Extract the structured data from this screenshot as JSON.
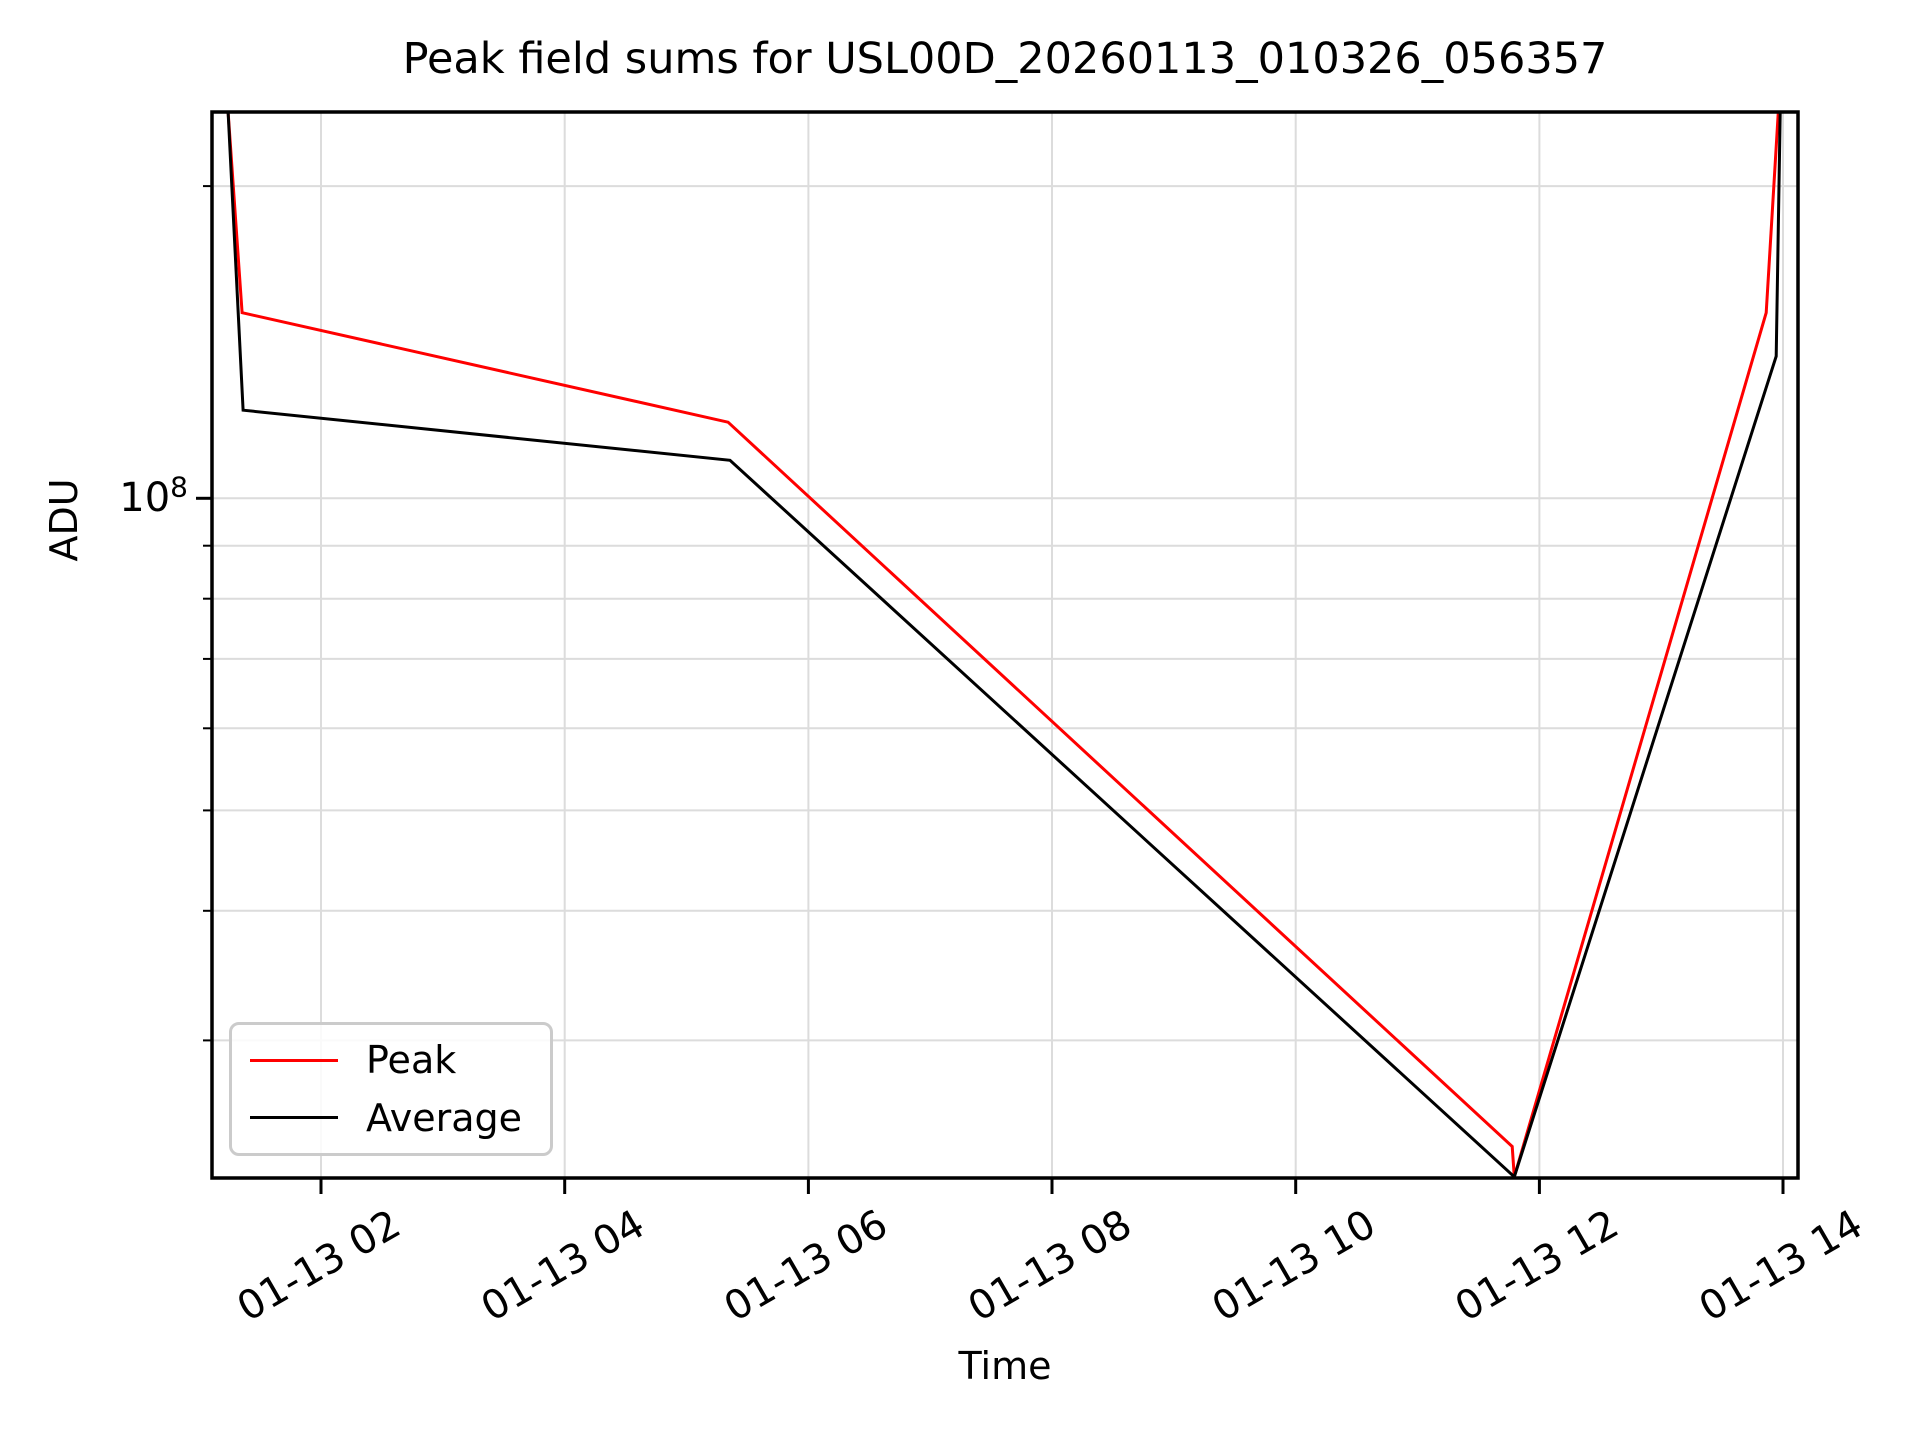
{
  "title": "Peak field sums for USL00D_20260113_010326_056357",
  "chart_data": {
    "type": "line",
    "title": "Peak field sums for USL00D_20260113_010326_056357",
    "xlabel": "Time",
    "ylabel": "ADU",
    "y_scale": "log",
    "grid": "both",
    "x_axis": {
      "range_hours": [
        1.105,
        14.123
      ],
      "day": "01-13",
      "ticks": [
        {
          "hour": 2,
          "label": "01-13 02"
        },
        {
          "hour": 4,
          "label": "01-13 04"
        },
        {
          "hour": 6,
          "label": "01-13 06"
        },
        {
          "hour": 8,
          "label": "01-13 08"
        },
        {
          "hour": 10,
          "label": "01-13 10"
        },
        {
          "hour": 12,
          "label": "01-13 12"
        },
        {
          "hour": 14,
          "label": "01-13 14"
        }
      ],
      "tick_rotation_deg": 30
    },
    "y_axis": {
      "range": [
        22100000,
        235800000
      ],
      "major_tick": {
        "value": 100000000,
        "label_base": "10",
        "label_exp": "8"
      },
      "minor_tick_values": [
        200000000,
        90000000,
        80000000,
        70000000,
        60000000,
        50000000,
        40000000,
        30000000
      ]
    },
    "legend": {
      "position": "lower left",
      "entries": [
        "Peak",
        "Average"
      ]
    },
    "series": [
      {
        "name": "Peak",
        "color": "#ff0000",
        "points": [
          {
            "time": "01-13 01:14",
            "hour": 1.237,
            "adu": 235800000,
            "clipped_at_top": true
          },
          {
            "time": "01-13 01:21",
            "hour": 1.352,
            "adu": 151000000
          },
          {
            "time": "01-13 05:20",
            "hour": 5.341,
            "adu": 118400000
          },
          {
            "time": "01-13 11:47",
            "hour": 11.777,
            "adu": 23700000
          },
          {
            "time": "01-13 11:48",
            "hour": 11.794,
            "adu": 22160000
          },
          {
            "time": "01-13 13:52",
            "hour": 13.862,
            "adu": 151000000
          },
          {
            "time": "01-13 13:58",
            "hour": 13.961,
            "adu": 235800000,
            "clipped_at_top": true
          }
        ]
      },
      {
        "name": "Average",
        "color": "#000000",
        "points": [
          {
            "time": "01-13 01:14",
            "hour": 1.237,
            "adu": 235800000,
            "clipped_at_top": true
          },
          {
            "time": "01-13 01:22",
            "hour": 1.36,
            "adu": 121600000
          },
          {
            "time": "01-13 05:21",
            "hour": 5.357,
            "adu": 108800000
          },
          {
            "time": "01-13 11:48",
            "hour": 11.794,
            "adu": 22160000
          },
          {
            "time": "01-13 13:57",
            "hour": 13.944,
            "adu": 137100000
          },
          {
            "time": "01-13 13:59",
            "hour": 13.977,
            "adu": 235800000,
            "clipped_at_top": true
          }
        ]
      }
    ],
    "colors": {
      "grid": "#dcdcdc",
      "spine": "#000000",
      "legend_border": "#cbcbcb"
    }
  }
}
